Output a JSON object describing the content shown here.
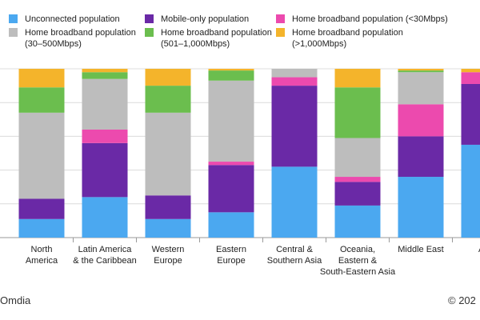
{
  "chart_data": {
    "type": "bar",
    "stacked": true,
    "percent": true,
    "categories": [
      "North\nAmerica",
      "Latin America\n& the Caribbean",
      "Western\nEurope",
      "Eastern\nEurope",
      "Central &\nSouthern Asia",
      "Oceania,\nEastern &\nSouth-Eastern Asia",
      "Middle East",
      "Afr"
    ],
    "series": [
      {
        "name": "Unconnected population",
        "color": "#4BA8F0",
        "values": [
          11,
          24,
          11,
          15,
          42,
          19,
          36,
          55
        ]
      },
      {
        "name": "Mobile-only population",
        "color": "#6A29A6",
        "values": [
          12,
          32,
          14,
          28,
          48,
          14,
          24,
          36
        ]
      },
      {
        "name": "Home broadband population (<30Mbps)",
        "color": "#EC4AAE",
        "values": [
          0,
          8,
          0,
          2,
          5,
          3,
          19,
          7
        ]
      },
      {
        "name": "Home broadband population\n(30–500Mbps)",
        "color": "#BDBDBD",
        "values": [
          51,
          30,
          49,
          48,
          5,
          23,
          19,
          0
        ]
      },
      {
        "name": "Home broadband population\n(501–1,000Mbps)",
        "color": "#6BBE4E",
        "values": [
          15,
          4,
          16,
          6,
          0,
          30,
          1,
          0
        ]
      },
      {
        "name": "Home broadband population\n(>1,000Mbps)",
        "color": "#F4B42B",
        "values": [
          11,
          2,
          10,
          1,
          0,
          11,
          1,
          2
        ]
      }
    ],
    "ylim": [
      0,
      100
    ],
    "gridlines": [
      0,
      20,
      40,
      60,
      80,
      100
    ],
    "legend_position": "top"
  },
  "footer": {
    "source": "Omdia",
    "copyright": "© 202"
  }
}
